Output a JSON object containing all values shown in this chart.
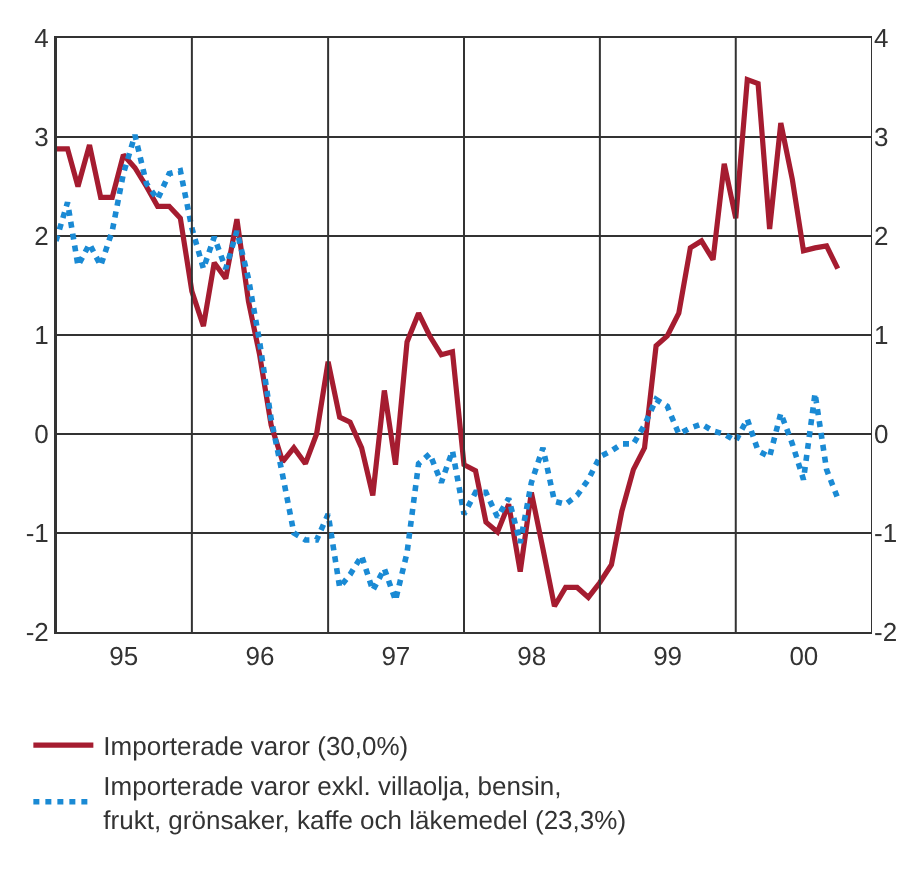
{
  "chart_data": {
    "type": "line",
    "x": [
      "1995-01",
      "1995-02",
      "1995-03",
      "1995-04",
      "1995-05",
      "1995-06",
      "1995-07",
      "1995-08",
      "1995-09",
      "1995-10",
      "1995-11",
      "1995-12",
      "1996-01",
      "1996-02",
      "1996-03",
      "1996-04",
      "1996-05",
      "1996-06",
      "1996-07",
      "1996-08",
      "1996-09",
      "1996-10",
      "1996-11",
      "1996-12",
      "1997-01",
      "1997-02",
      "1997-03",
      "1997-04",
      "1997-05",
      "1997-06",
      "1997-07",
      "1997-08",
      "1997-09",
      "1997-10",
      "1997-11",
      "1997-12",
      "1998-01",
      "1998-02",
      "1998-03",
      "1998-04",
      "1998-05",
      "1998-06",
      "1998-07",
      "1998-08",
      "1998-09",
      "1998-10",
      "1998-11",
      "1998-12",
      "1999-01",
      "1999-02",
      "1999-03",
      "1999-04",
      "1999-05",
      "1999-06",
      "1999-07",
      "1999-08",
      "1999-09",
      "1999-10",
      "1999-11",
      "1999-12",
      "2000-01",
      "2000-02",
      "2000-03",
      "2000-04",
      "2000-05",
      "2000-06",
      "2000-07",
      "2000-08",
      "2000-09",
      "2000-10"
    ],
    "series": [
      {
        "name": "Importerade varor (30,0%)",
        "color": "#a51c30",
        "line_style": "solid",
        "values": [
          2.88,
          2.88,
          2.5,
          2.92,
          2.39,
          2.39,
          2.82,
          2.69,
          2.5,
          2.3,
          2.3,
          2.18,
          1.44,
          1.09,
          1.73,
          1.57,
          2.17,
          1.34,
          0.8,
          0.09,
          -0.28,
          -0.14,
          -0.3,
          0,
          0.73,
          0.17,
          0.12,
          -0.14,
          -0.62,
          0.44,
          -0.31,
          0.93,
          1.22,
          0.99,
          0.8,
          0.83,
          -0.31,
          -0.37,
          -0.89,
          -0.99,
          -0.71,
          -1.39,
          -0.59,
          -1.16,
          -1.74,
          -1.55,
          -1.55,
          -1.65,
          -1.5,
          -1.32,
          -0.78,
          -0.36,
          -0.14,
          0.89,
          0.99,
          1.22,
          1.88,
          1.95,
          1.76,
          2.73,
          2.18,
          3.58,
          3.54,
          2.07,
          3.14,
          2.57,
          1.85,
          1.88,
          1.9,
          1.67
        ]
      },
      {
        "name": "Importerade varor exkl. villaolja, bensin, frukt, grönsaker, kaffe och läkemedel (23,3%)",
        "color": "#1a8ad4",
        "line_style": "dotted",
        "values": [
          1.95,
          2.34,
          1.7,
          1.92,
          1.7,
          2.05,
          2.63,
          3.02,
          2.53,
          2.37,
          2.63,
          2.66,
          2.08,
          1.67,
          1.99,
          1.67,
          2.05,
          1.57,
          0.93,
          0.15,
          -0.42,
          -1.0,
          -1.07,
          -1.07,
          -0.81,
          -1.55,
          -1.42,
          -1.23,
          -1.58,
          -1.36,
          -1.68,
          -1.2,
          -0.3,
          -0.2,
          -0.49,
          -0.17,
          -0.81,
          -0.59,
          -0.59,
          -0.84,
          -0.65,
          -1.1,
          -0.49,
          -0.14,
          -0.68,
          -0.71,
          -0.62,
          -0.46,
          -0.23,
          -0.17,
          -0.1,
          -0.1,
          0.09,
          0.35,
          0.28,
          0,
          0.06,
          0.1,
          0.03,
          0,
          -0.07,
          0.15,
          -0.17,
          -0.23,
          0.21,
          -0.1,
          -0.46,
          0.41,
          -0.36,
          -0.65
        ]
      }
    ],
    "xlim": [
      "1995-01-01",
      "2001-01-01"
    ],
    "xticks": [
      {
        "value": "1995-01-01",
        "label": null
      },
      {
        "value": "1995-07-02",
        "label": "95"
      },
      {
        "value": "1996-01-01",
        "label": null
      },
      {
        "value": "1996-07-02",
        "label": "96"
      },
      {
        "value": "1997-01-01",
        "label": null
      },
      {
        "value": "1997-07-02",
        "label": "97"
      },
      {
        "value": "1998-01-01",
        "label": null
      },
      {
        "value": "1998-07-02",
        "label": "98"
      },
      {
        "value": "1999-01-01",
        "label": null
      },
      {
        "value": "1999-07-02",
        "label": "99"
      },
      {
        "value": "2000-01-01",
        "label": null
      },
      {
        "value": "2000-07-02",
        "label": "00"
      },
      {
        "value": "2001-01-01",
        "label": null
      }
    ],
    "ylim": [
      -2,
      4
    ],
    "yticks": [
      -2,
      -1,
      0,
      1,
      2,
      3,
      4
    ],
    "y2lim": [
      -2,
      4
    ],
    "y2ticks": [
      -2,
      -1,
      0,
      1,
      2,
      3,
      4
    ],
    "grid": true,
    "legend": "bottom",
    "marker": "none"
  }
}
